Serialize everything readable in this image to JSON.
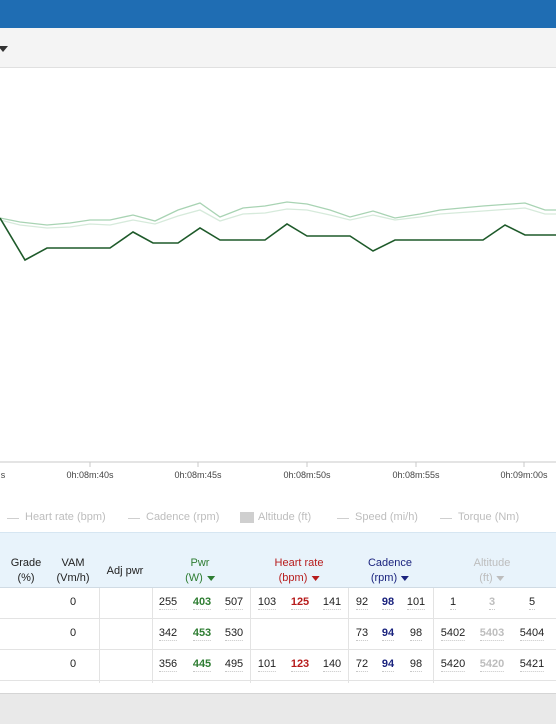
{
  "chart": {
    "xticks": [
      "s",
      "0h:08m:40s",
      "0h:08m:45s",
      "0h:08m:50s",
      "0h:08m:55s",
      "0h:09m:00s"
    ]
  },
  "legend": [
    "Heart rate (bpm)",
    "Cadence (rpm)",
    "Altitude (ft)",
    "Speed (mi/h)",
    "Torque (Nm)"
  ],
  "table": {
    "columns": [
      {
        "title": "Grade",
        "unit": "(%)"
      },
      {
        "title": "VAM",
        "unit": "(Vm/h)"
      },
      {
        "title": "Adj pwr"
      },
      {
        "title": "Pwr",
        "unit": "(W)"
      },
      {
        "title": "Heart rate",
        "unit": "(bpm)"
      },
      {
        "title": "Cadence",
        "unit": "(rpm)"
      },
      {
        "title": "Altitude",
        "unit": "(ft)"
      }
    ],
    "rows": [
      {
        "vam": 0,
        "pwr": [
          255,
          403,
          507
        ],
        "hr": [
          103,
          125,
          141
        ],
        "cadence": [
          92,
          98,
          101
        ],
        "altitude": [
          1,
          3,
          5
        ]
      },
      {
        "vam": 0,
        "pwr": [
          342,
          453,
          530
        ],
        "hr": [],
        "cadence": [
          73,
          94,
          98
        ],
        "altitude": [
          5402,
          5403,
          5404
        ]
      },
      {
        "vam": 0,
        "pwr": [
          356,
          445,
          495
        ],
        "hr": [
          101,
          123,
          140
        ],
        "cadence": [
          72,
          94,
          98
        ],
        "altitude": [
          5420,
          5420,
          5421
        ]
      }
    ]
  }
}
